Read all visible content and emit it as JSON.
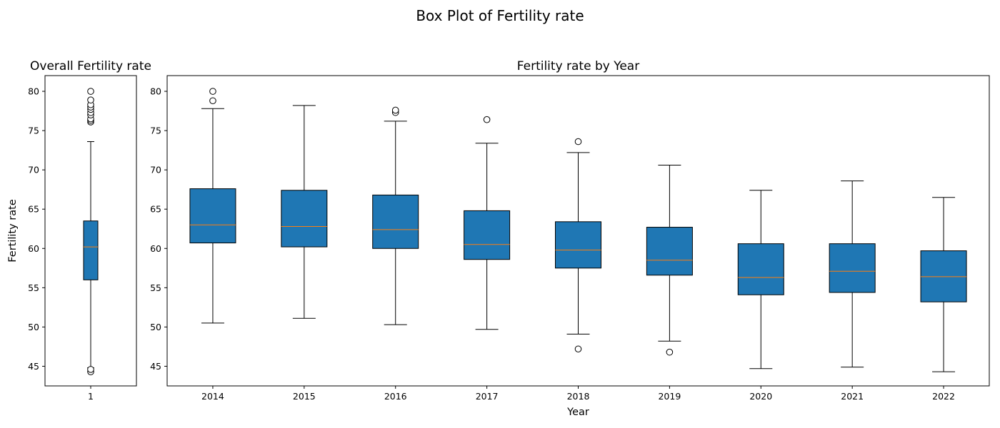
{
  "suptitle": "Box Plot of Fertility rate",
  "colors": {
    "box_fill": "#1f77b4",
    "median": "#ff7f0e",
    "stroke": "#000000",
    "flier_face": "#ffffff"
  },
  "chart_data": [
    {
      "type": "box",
      "title": "Overall Fertility rate",
      "xlabel": "",
      "ylabel": "Fertility rate",
      "ylim": [
        42.5,
        82.0
      ],
      "yticks": [
        45,
        50,
        55,
        60,
        65,
        70,
        75,
        80
      ],
      "categories": [
        "1"
      ],
      "boxes": [
        {
          "whislo": 44.8,
          "q1": 56.0,
          "med": 60.2,
          "q3": 63.5,
          "whishi": 73.6,
          "fliers": [
            44.3,
            44.6,
            76.1,
            76.3,
            76.5,
            77.0,
            77.3,
            77.7,
            78.0,
            78.3,
            78.9,
            80.0
          ]
        }
      ]
    },
    {
      "type": "box",
      "title": "Fertility rate by Year",
      "xlabel": "Year",
      "ylabel": "",
      "ylim": [
        42.5,
        82.0
      ],
      "yticks": [
        45,
        50,
        55,
        60,
        65,
        70,
        75,
        80
      ],
      "categories": [
        "2014",
        "2015",
        "2016",
        "2017",
        "2018",
        "2019",
        "2020",
        "2021",
        "2022"
      ],
      "boxes": [
        {
          "whislo": 50.5,
          "q1": 60.7,
          "med": 63.0,
          "q3": 67.6,
          "whishi": 77.8,
          "fliers": [
            78.8,
            80.0
          ]
        },
        {
          "whislo": 51.1,
          "q1": 60.2,
          "med": 62.8,
          "q3": 67.4,
          "whishi": 78.2,
          "fliers": []
        },
        {
          "whislo": 50.3,
          "q1": 60.0,
          "med": 62.4,
          "q3": 66.8,
          "whishi": 76.2,
          "fliers": [
            77.3,
            77.6
          ]
        },
        {
          "whislo": 49.7,
          "q1": 58.6,
          "med": 60.5,
          "q3": 64.8,
          "whishi": 73.4,
          "fliers": [
            76.4
          ]
        },
        {
          "whislo": 49.1,
          "q1": 57.5,
          "med": 59.8,
          "q3": 63.4,
          "whishi": 72.2,
          "fliers": [
            47.2,
            73.6
          ]
        },
        {
          "whislo": 48.2,
          "q1": 56.6,
          "med": 58.5,
          "q3": 62.7,
          "whishi": 70.6,
          "fliers": [
            46.8
          ]
        },
        {
          "whislo": 44.7,
          "q1": 54.1,
          "med": 56.3,
          "q3": 60.6,
          "whishi": 67.4,
          "fliers": []
        },
        {
          "whislo": 44.9,
          "q1": 54.4,
          "med": 57.1,
          "q3": 60.6,
          "whishi": 68.6,
          "fliers": []
        },
        {
          "whislo": 44.3,
          "q1": 53.2,
          "med": 56.4,
          "q3": 59.7,
          "whishi": 66.5,
          "fliers": []
        }
      ]
    }
  ]
}
